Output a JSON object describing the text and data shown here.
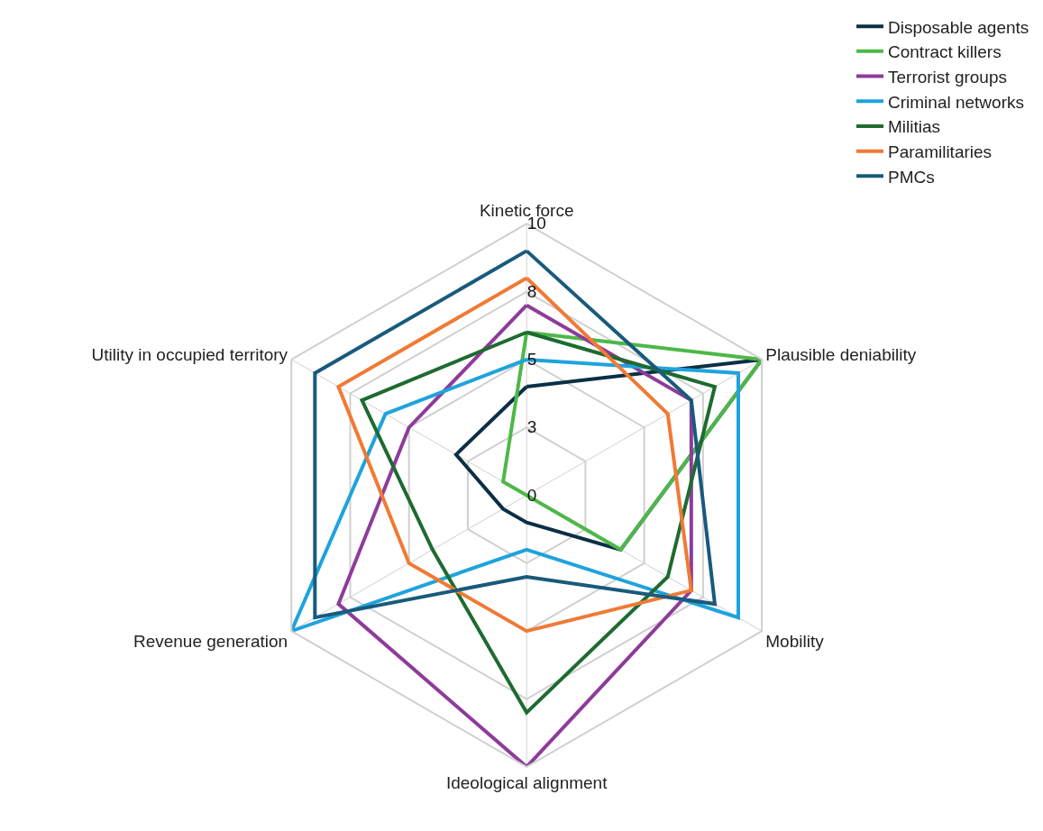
{
  "chart_data": {
    "type": "radar",
    "categories": [
      "Kinetic force",
      "Plausible deniability",
      "Mobility",
      "Ideological alignment",
      "Revenue generation",
      "Utility in occupied territory"
    ],
    "series": [
      {
        "name": "Disposable agents",
        "color": "#0b2f45",
        "values": [
          4,
          10,
          4,
          1,
          1,
          3
        ]
      },
      {
        "name": "Contract killers",
        "color": "#4db848",
        "values": [
          6,
          10,
          4,
          0,
          0,
          1
        ]
      },
      {
        "name": "Terrorist groups",
        "color": "#8e3b9a",
        "values": [
          7,
          7,
          7,
          10,
          8,
          5
        ]
      },
      {
        "name": "Criminal networks",
        "color": "#1fa3dc",
        "values": [
          5,
          9,
          9,
          2,
          10,
          6
        ]
      },
      {
        "name": "Militias",
        "color": "#1e6b30",
        "values": [
          6,
          8,
          6,
          8,
          4,
          7
        ]
      },
      {
        "name": "Paramilitaries",
        "color": "#f07a35",
        "values": [
          8,
          6,
          7,
          5,
          5,
          8
        ]
      },
      {
        "name": "PMCs",
        "color": "#195a7c",
        "values": [
          9,
          7,
          8,
          3,
          9,
          9
        ]
      }
    ],
    "ylim": [
      0,
      10
    ],
    "yticks": [
      0,
      {
        "value": 2.5,
        "label": "3"
      },
      5,
      {
        "value": 7.5,
        "label": "8"
      },
      10
    ],
    "grid": true,
    "legend": "top right",
    "marker": "none",
    "line_style": "solid"
  }
}
